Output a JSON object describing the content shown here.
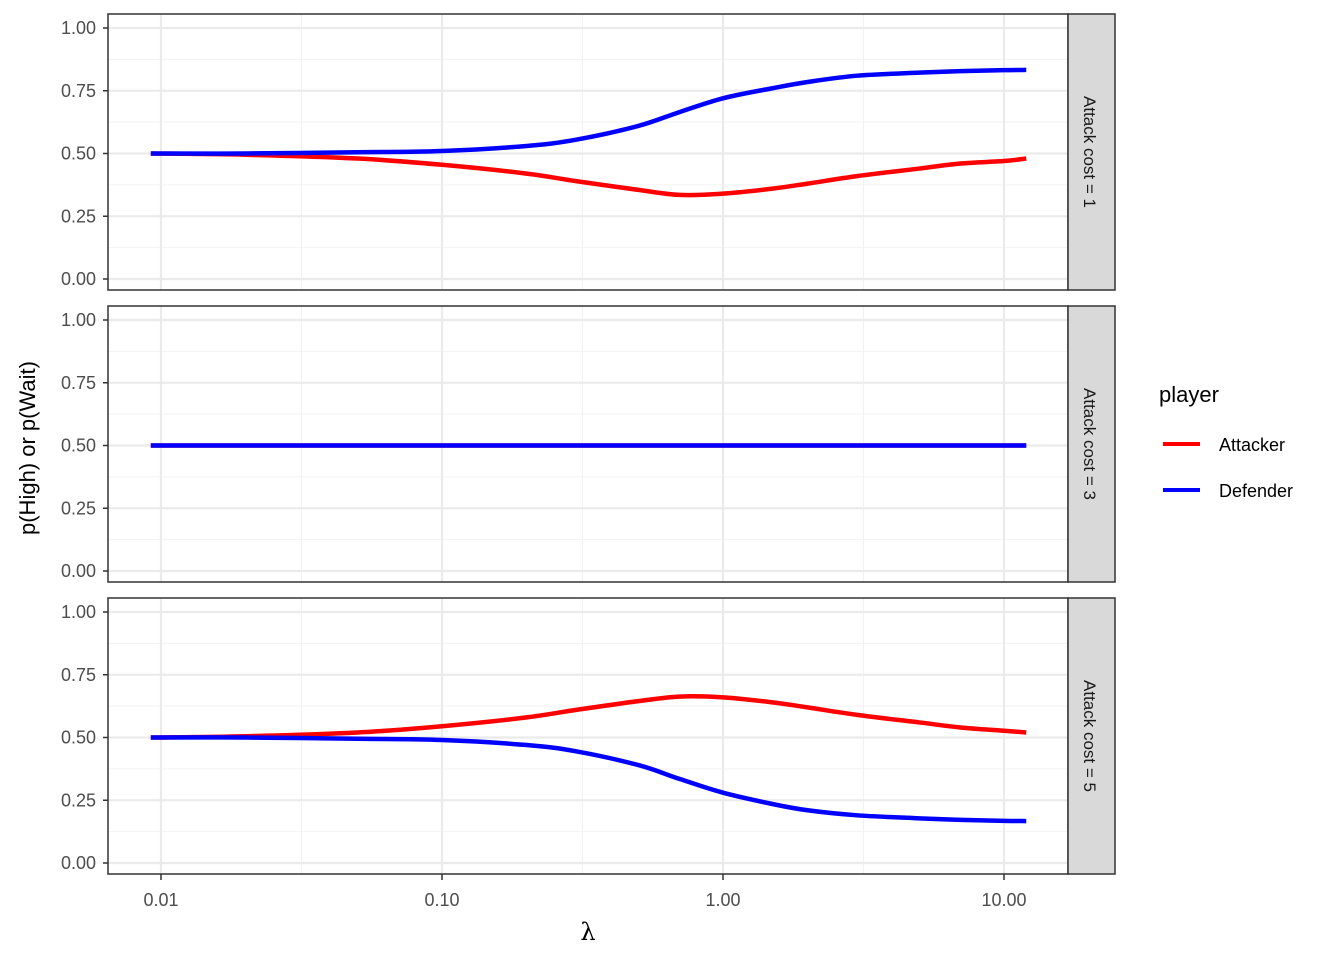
{
  "chart_data": {
    "type": "line",
    "layout": "facet_grid_rows",
    "xlabel": "λ",
    "ylabel": "p(High) or p(Wait)",
    "x_scale": "log10",
    "x_ticks": [
      0.01,
      0.1,
      1,
      10
    ],
    "x_tick_labels": [
      "0.01",
      "0.10",
      "1.00",
      "10.00"
    ],
    "y_ticks": [
      0,
      0.25,
      0.5,
      0.75,
      1
    ],
    "y_tick_labels": [
      "0.00",
      "0.25",
      "0.50",
      "0.75",
      "1.00"
    ],
    "ylim": [
      0,
      1
    ],
    "xlim": [
      0.0092,
      12
    ],
    "grid": true,
    "legend": {
      "title": "player",
      "position": "right",
      "entries": [
        {
          "label": "Attacker",
          "color": "#ff0000"
        },
        {
          "label": "Defender",
          "color": "#0000ff"
        }
      ]
    },
    "x": [
      0.0092,
      0.02,
      0.05,
      0.1,
      0.2,
      0.3,
      0.5,
      0.7,
      1.0,
      1.5,
      2.0,
      3.0,
      5.0,
      7.0,
      10.0,
      12.0
    ],
    "panels": [
      {
        "strip": "Attack cost = 1",
        "series": [
          {
            "name": "Attacker",
            "values": [
              0.5,
              0.495,
              0.48,
              0.455,
              0.42,
              0.39,
              0.355,
              0.335,
              0.34,
              0.36,
              0.38,
              0.41,
              0.44,
              0.46,
              0.47,
              0.48
            ]
          },
          {
            "name": "Defender",
            "values": [
              0.5,
              0.5,
              0.505,
              0.51,
              0.53,
              0.555,
              0.61,
              0.665,
              0.72,
              0.76,
              0.785,
              0.81,
              0.822,
              0.828,
              0.832,
              0.833
            ]
          }
        ]
      },
      {
        "strip": "Attack cost = 3",
        "series": [
          {
            "name": "Attacker",
            "values": [
              0.5,
              0.5,
              0.5,
              0.5,
              0.5,
              0.5,
              0.5,
              0.5,
              0.5,
              0.5,
              0.5,
              0.5,
              0.5,
              0.5,
              0.5,
              0.5
            ]
          },
          {
            "name": "Defender",
            "values": [
              0.5,
              0.5,
              0.5,
              0.5,
              0.5,
              0.5,
              0.5,
              0.5,
              0.5,
              0.5,
              0.5,
              0.5,
              0.5,
              0.5,
              0.5,
              0.5
            ]
          }
        ]
      },
      {
        "strip": "Attack cost = 5",
        "series": [
          {
            "name": "Attacker",
            "values": [
              0.5,
              0.505,
              0.52,
              0.545,
              0.58,
              0.61,
              0.645,
              0.663,
              0.66,
              0.64,
              0.62,
              0.59,
              0.56,
              0.54,
              0.527,
              0.52
            ]
          },
          {
            "name": "Defender",
            "values": [
              0.5,
              0.5,
              0.495,
              0.49,
              0.47,
              0.445,
              0.39,
              0.335,
              0.28,
              0.235,
              0.21,
              0.19,
              0.178,
              0.172,
              0.168,
              0.167
            ]
          }
        ]
      }
    ]
  },
  "axis": {
    "x_title": "λ",
    "y_title": "p(High) or p(Wait)"
  },
  "legend": {
    "title": "player",
    "items": [
      {
        "label": "Attacker",
        "color": "#ff0000"
      },
      {
        "label": "Defender",
        "color": "#0000ff"
      }
    ]
  },
  "panels": [
    {
      "strip": "Attack cost = 1"
    },
    {
      "strip": "Attack cost = 3"
    },
    {
      "strip": "Attack cost = 5"
    }
  ],
  "colors": {
    "attacker": "#ff0000",
    "defender": "#0000ff",
    "grid_major": "#ebebeb",
    "grid_minor": "#f2f2f2",
    "strip_bg": "#d9d9d9",
    "frame": "#333333"
  }
}
